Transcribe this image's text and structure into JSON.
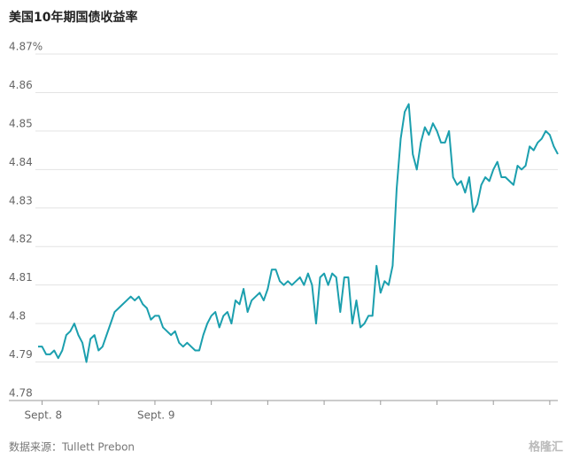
{
  "chart_data": {
    "type": "line",
    "title": "美国10年期国债收益率",
    "source": "数据来源：Tullett Prebon",
    "watermark": "格隆汇",
    "grid": true,
    "ylim": [
      4.78,
      4.87
    ],
    "yticks": [
      4.78,
      4.79,
      4.8,
      4.81,
      4.82,
      4.83,
      4.84,
      4.85,
      4.86,
      {
        "value": 4.87,
        "label": "4.87%"
      }
    ],
    "categories": [
      null,
      "Sept. 8",
      null,
      null,
      null,
      null,
      null,
      null,
      null,
      null,
      null,
      null,
      null,
      null,
      null,
      null,
      null,
      null,
      null,
      null,
      null,
      null,
      null,
      null,
      null,
      null,
      null,
      null,
      null,
      "Sept. 9",
      null,
      null,
      null,
      null,
      null,
      null,
      null,
      null,
      null,
      null,
      null,
      null,
      null,
      null,
      null,
      null,
      null,
      null,
      null,
      null,
      null,
      null,
      null,
      null,
      null,
      null,
      null,
      null,
      null,
      null,
      null,
      null,
      null,
      null,
      null,
      null,
      null,
      null,
      null,
      null,
      null,
      null,
      null,
      null,
      null,
      null,
      null,
      null,
      null,
      null,
      null,
      null,
      null,
      null,
      null,
      null,
      null,
      null,
      null,
      null,
      null,
      null,
      null,
      null,
      null,
      null,
      null,
      null,
      null,
      null,
      null,
      null,
      null,
      null,
      null,
      null,
      null,
      null,
      null,
      null,
      null,
      null,
      null,
      null,
      null,
      null,
      null,
      null,
      null,
      null,
      null,
      null,
      null,
      null,
      null,
      null,
      null,
      null,
      null,
      null
    ],
    "series": [
      {
        "name": "美国10年期国债收益率",
        "color": "#1b9fae",
        "values": [
          4.794,
          4.794,
          4.792,
          4.792,
          4.793,
          4.791,
          4.793,
          4.797,
          4.798,
          4.8,
          4.797,
          4.795,
          4.79,
          4.796,
          4.797,
          4.793,
          4.794,
          4.797,
          4.8,
          4.803,
          4.804,
          4.805,
          4.806,
          4.807,
          4.806,
          4.807,
          4.805,
          4.804,
          4.801,
          4.802,
          4.802,
          4.799,
          4.798,
          4.797,
          4.798,
          4.795,
          4.794,
          4.795,
          4.794,
          4.793,
          4.793,
          4.797,
          4.8,
          4.802,
          4.803,
          4.799,
          4.802,
          4.803,
          4.8,
          4.806,
          4.805,
          4.809,
          4.803,
          4.806,
          4.807,
          4.808,
          4.806,
          4.809,
          4.814,
          4.814,
          4.811,
          4.81,
          4.811,
          4.81,
          4.811,
          4.812,
          4.81,
          4.813,
          4.81,
          4.8,
          4.812,
          4.813,
          4.81,
          4.813,
          4.812,
          4.803,
          4.812,
          4.812,
          4.8,
          4.806,
          4.799,
          4.8,
          4.802,
          4.802,
          4.815,
          4.808,
          4.811,
          4.81,
          4.815,
          4.835,
          4.848,
          4.855,
          4.857,
          4.844,
          4.84,
          4.847,
          4.851,
          4.849,
          4.852,
          4.85,
          4.847,
          4.847,
          4.85,
          4.838,
          4.836,
          4.837,
          4.834,
          4.838,
          4.829,
          4.831,
          4.836,
          4.838,
          4.837,
          4.84,
          4.842,
          4.838,
          4.838,
          4.837,
          4.836,
          4.841,
          4.84,
          4.841,
          4.846,
          4.845,
          4.847,
          4.848,
          4.85,
          4.849,
          4.846,
          4.844
        ]
      }
    ]
  }
}
